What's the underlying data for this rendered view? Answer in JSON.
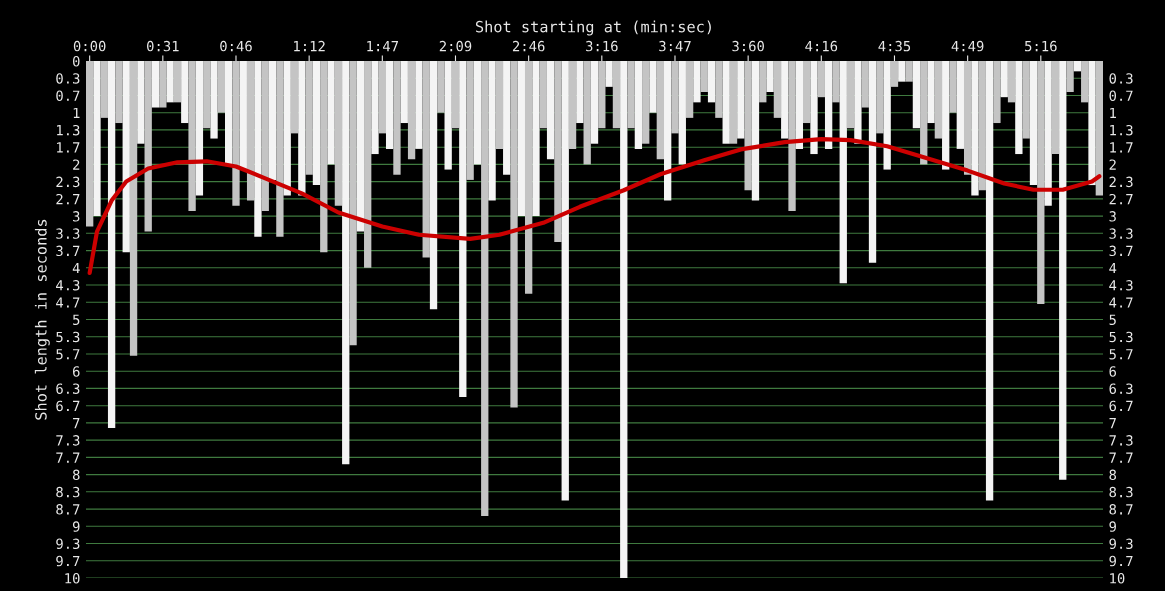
{
  "chart_data": {
    "type": "bar",
    "xlabel": "Shot starting at (min:sec)",
    "ylabel": "Shot length in seconds",
    "categories": [
      "0:00",
      null,
      null,
      null,
      null,
      null,
      null,
      null,
      null,
      null,
      "0:31",
      null,
      null,
      null,
      null,
      null,
      null,
      null,
      null,
      null,
      "0:46",
      null,
      null,
      null,
      null,
      null,
      null,
      null,
      null,
      null,
      "1:12",
      null,
      null,
      null,
      null,
      null,
      null,
      null,
      null,
      null,
      "1:47",
      null,
      null,
      null,
      null,
      null,
      null,
      null,
      null,
      null,
      "2:09",
      null,
      null,
      null,
      null,
      null,
      null,
      null,
      null,
      null,
      "2:46",
      null,
      null,
      null,
      null,
      null,
      null,
      null,
      null,
      null,
      "3:16",
      null,
      null,
      null,
      null,
      null,
      null,
      null,
      null,
      null,
      "3:47",
      null,
      null,
      null,
      null,
      null,
      null,
      null,
      null,
      null,
      "3:60",
      null,
      null,
      null,
      null,
      null,
      null,
      null,
      null,
      null,
      "4:16",
      null,
      null,
      null,
      null,
      null,
      null,
      null,
      null,
      null,
      "4:35",
      null,
      null,
      null,
      null,
      null,
      null,
      null,
      null,
      null,
      "4:49",
      null,
      null,
      null,
      null,
      null,
      null,
      null,
      null,
      null,
      "5:16",
      null,
      null,
      null,
      null,
      null,
      null,
      null,
      null
    ],
    "series": [
      {
        "values": [
          3.2,
          3.0,
          1.1,
          7.1,
          1.2,
          3.7,
          5.7,
          1.6,
          3.3,
          0.9,
          0.9,
          0.8,
          0.8,
          1.2,
          2.9,
          2.6,
          1.3,
          1.5,
          1.0,
          2.0,
          2.8,
          2.1,
          2.7,
          3.4,
          2.9,
          2.3,
          3.4,
          2.6,
          1.4,
          2.6,
          2.2,
          2.4,
          3.7,
          2.0,
          2.8,
          7.8,
          5.5,
          3.3,
          4.0,
          1.8,
          1.4,
          1.7,
          2.2,
          1.2,
          1.9,
          1.7,
          3.8,
          4.8,
          1.0,
          2.1,
          1.3,
          6.5,
          2.3,
          2.0,
          8.8,
          2.7,
          1.7,
          2.2,
          6.7,
          3.0,
          4.5,
          3.0,
          1.3,
          1.9,
          3.5,
          8.5,
          1.7,
          1.2,
          2.0,
          1.6,
          1.3,
          0.5,
          1.3,
          10.0,
          1.3,
          1.7,
          1.6,
          1.0,
          1.9,
          2.7,
          1.4,
          2.0,
          1.1,
          0.8,
          0.6,
          0.8,
          1.1,
          1.6,
          1.6,
          1.5,
          2.5,
          2.7,
          0.8,
          0.6,
          1.1,
          1.5,
          2.9,
          1.7,
          1.2,
          1.8,
          0.7,
          1.7,
          0.8,
          4.3,
          1.3,
          1.6,
          0.9,
          3.9,
          1.4,
          2.1,
          0.5,
          0.4,
          0.4,
          1.3,
          2.0,
          1.2,
          1.5,
          2.1,
          1.0,
          1.7,
          2.2,
          2.6,
          2.5,
          8.5,
          1.2,
          0.7,
          0.8,
          1.8,
          1.5,
          2.4,
          4.7,
          2.8,
          1.8,
          8.1,
          0.6,
          0.2,
          0.8,
          2.4,
          2.6
        ],
        "colors": [
          "#c4c4c4",
          "#f4f4f4",
          "#c4c4c4",
          "#f4f4f4",
          "#c4c4c4",
          "#f4f4f4",
          "#c4c4c4",
          "#f4f4f4",
          "#c4c4c4",
          "#f4f4f4",
          "#c4c4c4",
          "#f4f4f4",
          "#c4c4c4",
          "#f4f4f4",
          "#c4c4c4",
          "#f4f4f4",
          "#c4c4c4",
          "#f4f4f4",
          "#c4c4c4",
          "#f4f4f4",
          "#c4c4c4",
          "#f4f4f4",
          "#c4c4c4",
          "#f4f4f4",
          "#c4c4c4",
          "#f4f4f4",
          "#c4c4c4",
          "#f4f4f4",
          "#c4c4c4",
          "#f4f4f4",
          "#c4c4c4",
          "#f4f4f4",
          "#c4c4c4",
          "#f4f4f4",
          "#c4c4c4",
          "#f4f4f4",
          "#c4c4c4",
          "#f4f4f4",
          "#c4c4c4",
          "#f4f4f4",
          "#c4c4c4",
          "#f4f4f4",
          "#c4c4c4",
          "#f4f4f4",
          "#c4c4c4",
          "#f4f4f4",
          "#c4c4c4",
          "#f4f4f4",
          "#c4c4c4",
          "#f4f4f4",
          "#c4c4c4",
          "#f4f4f4",
          "#c4c4c4",
          "#f4f4f4",
          "#c4c4c4",
          "#f4f4f4",
          "#c4c4c4",
          "#f4f4f4",
          "#c4c4c4",
          "#f4f4f4",
          "#c4c4c4",
          "#f4f4f4",
          "#c4c4c4",
          "#f4f4f4",
          "#c4c4c4",
          "#f4f4f4",
          "#c4c4c4",
          "#f4f4f4",
          "#c4c4c4",
          "#f4f4f4",
          "#c4c4c4",
          "#f4f4f4",
          "#c4c4c4",
          "#f4f4f4",
          "#c4c4c4",
          "#f4f4f4",
          "#c4c4c4",
          "#f4f4f4",
          "#c4c4c4",
          "#f4f4f4",
          "#c4c4c4",
          "#f4f4f4",
          "#c4c4c4",
          "#f4f4f4",
          "#c4c4c4",
          "#f4f4f4",
          "#c4c4c4",
          "#f4f4f4",
          "#c4c4c4",
          "#f4f4f4",
          "#c4c4c4",
          "#f4f4f4",
          "#c4c4c4",
          "#f4f4f4",
          "#c4c4c4",
          "#f4f4f4",
          "#c4c4c4",
          "#f4f4f4",
          "#c4c4c4",
          "#f4f4f4",
          "#c4c4c4",
          "#f4f4f4",
          "#c4c4c4",
          "#f4f4f4",
          "#c4c4c4",
          "#f4f4f4",
          "#c4c4c4",
          "#f4f4f4",
          "#c4c4c4",
          "#f4f4f4",
          "#c4c4c4",
          "#f4f4f4",
          "#c4c4c4",
          "#f4f4f4",
          "#c4c4c4",
          "#f4f4f4",
          "#c4c4c4",
          "#f4f4f4",
          "#c4c4c4",
          "#f4f4f4",
          "#c4c4c4",
          "#f4f4f4",
          "#c4c4c4",
          "#f4f4f4",
          "#c4c4c4",
          "#f4f4f4",
          "#c4c4c4",
          "#f4f4f4",
          "#c4c4c4",
          "#f4f4f4",
          "#c4c4c4",
          "#f4f4f4",
          "#c4c4c4",
          "#f4f4f4",
          "#c4c4c4",
          "#f4f4f4",
          "#c4c4c4",
          "#f4f4f4",
          "#c4c4c4"
        ]
      },
      {
        "type": "line",
        "color": "#cc0000",
        "values": [
          4.1,
          3.3,
          null,
          2.7,
          null,
          2.33,
          null,
          null,
          2.08,
          null,
          null,
          null,
          1.96,
          null,
          null,
          null,
          1.94,
          null,
          null,
          null,
          2.04,
          null,
          null,
          null,
          2.27,
          null,
          null,
          null,
          null,
          2.56,
          null,
          null,
          null,
          null,
          2.93,
          null,
          null,
          null,
          null,
          null,
          3.2,
          null,
          null,
          null,
          null,
          3.36,
          null,
          null,
          null,
          null,
          null,
          null,
          3.44,
          null,
          null,
          null,
          3.36,
          null,
          null,
          null,
          null,
          null,
          3.13,
          null,
          null,
          null,
          null,
          2.82,
          null,
          null,
          null,
          null,
          null,
          2.5,
          null,
          null,
          null,
          null,
          2.19,
          null,
          null,
          null,
          null,
          null,
          1.92,
          null,
          null,
          null,
          null,
          1.71,
          null,
          null,
          null,
          null,
          null,
          1.57,
          null,
          null,
          null,
          null,
          1.51,
          null,
          null,
          null,
          1.53,
          null,
          null,
          null,
          null,
          1.65,
          null,
          null,
          null,
          null,
          1.86,
          null,
          null,
          null,
          null,
          null,
          2.12,
          null,
          null,
          null,
          null,
          2.37,
          null,
          null,
          null,
          2.49,
          null,
          null,
          null,
          2.49,
          null,
          null,
          null,
          2.33,
          2.23
        ]
      }
    ],
    "ylim": [
      10,
      0
    ],
    "yticks": [
      0,
      {
        "value": 0.333,
        "label": "0.3"
      },
      {
        "value": 0.667,
        "label": "0.7"
      },
      1,
      {
        "value": 1.333,
        "label": "1.3"
      },
      {
        "value": 1.667,
        "label": "1.7"
      },
      2,
      {
        "value": 2.333,
        "label": "2.3"
      },
      {
        "value": 2.667,
        "label": "2.7"
      },
      3,
      {
        "value": 3.333,
        "label": "3.3"
      },
      {
        "value": 3.667,
        "label": "3.7"
      },
      4,
      {
        "value": 4.333,
        "label": "4.3"
      },
      {
        "value": 4.667,
        "label": "4.7"
      },
      5,
      {
        "value": 5.333,
        "label": "5.3"
      },
      {
        "value": 5.667,
        "label": "5.7"
      },
      6,
      {
        "value": 6.333,
        "label": "6.3"
      },
      {
        "value": 6.667,
        "label": "6.7"
      },
      7,
      {
        "value": 7.333,
        "label": "7.3"
      },
      {
        "value": 7.667,
        "label": "7.7"
      },
      8,
      {
        "value": 8.333,
        "label": "8.3"
      },
      {
        "value": 8.667,
        "label": "8.7"
      },
      9,
      {
        "value": 9.333,
        "label": "9.3"
      },
      {
        "value": 9.667,
        "label": "9.7"
      },
      10
    ],
    "y2lim": [
      10,
      0
    ],
    "y2ticks": [
      {
        "value": 0.333,
        "label": "0.3"
      },
      {
        "value": 0.667,
        "label": "0.7"
      },
      1,
      {
        "value": 1.333,
        "label": "1.3"
      },
      {
        "value": 1.667,
        "label": "1.7"
      },
      2,
      {
        "value": 2.333,
        "label": "2.3"
      },
      {
        "value": 2.667,
        "label": "2.7"
      },
      3,
      {
        "value": 3.333,
        "label": "3.3"
      },
      {
        "value": 3.667,
        "label": "3.7"
      },
      4,
      {
        "value": 4.333,
        "label": "4.3"
      },
      {
        "value": 4.667,
        "label": "4.7"
      },
      5,
      {
        "value": 5.333,
        "label": "5.3"
      },
      {
        "value": 5.667,
        "label": "5.7"
      },
      6,
      {
        "value": 6.333,
        "label": "6.3"
      },
      {
        "value": 6.667,
        "label": "6.7"
      },
      7,
      {
        "value": 7.333,
        "label": "7.3"
      },
      {
        "value": 7.667,
        "label": "7.7"
      },
      8,
      {
        "value": 8.333,
        "label": "8.3"
      },
      {
        "value": 8.667,
        "label": "8.7"
      },
      9,
      {
        "value": 9.333,
        "label": "9.3"
      },
      {
        "value": 9.667,
        "label": "9.7"
      },
      10
    ],
    "grid": "y"
  }
}
